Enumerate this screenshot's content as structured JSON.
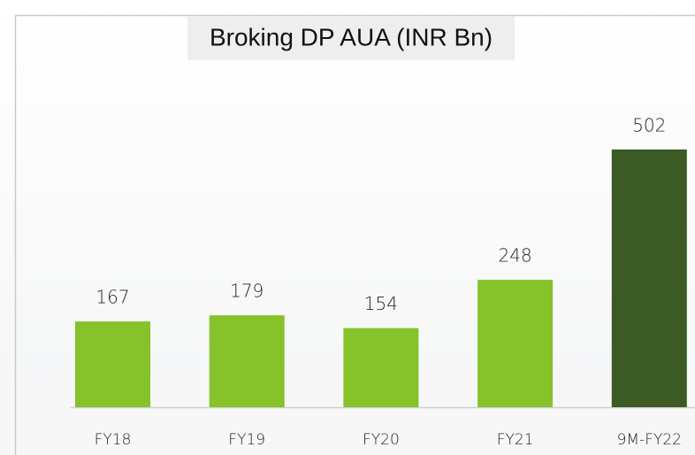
{
  "chart_data": {
    "type": "bar",
    "title": "Broking DP AUA (INR Bn)",
    "categories": [
      "FY18",
      "FY19",
      "FY20",
      "FY21",
      "9M-FY22"
    ],
    "values": [
      167,
      179,
      154,
      248,
      502
    ],
    "colors": [
      "#86c22a",
      "#86c22a",
      "#86c22a",
      "#86c22a",
      "#3c5a24"
    ]
  }
}
